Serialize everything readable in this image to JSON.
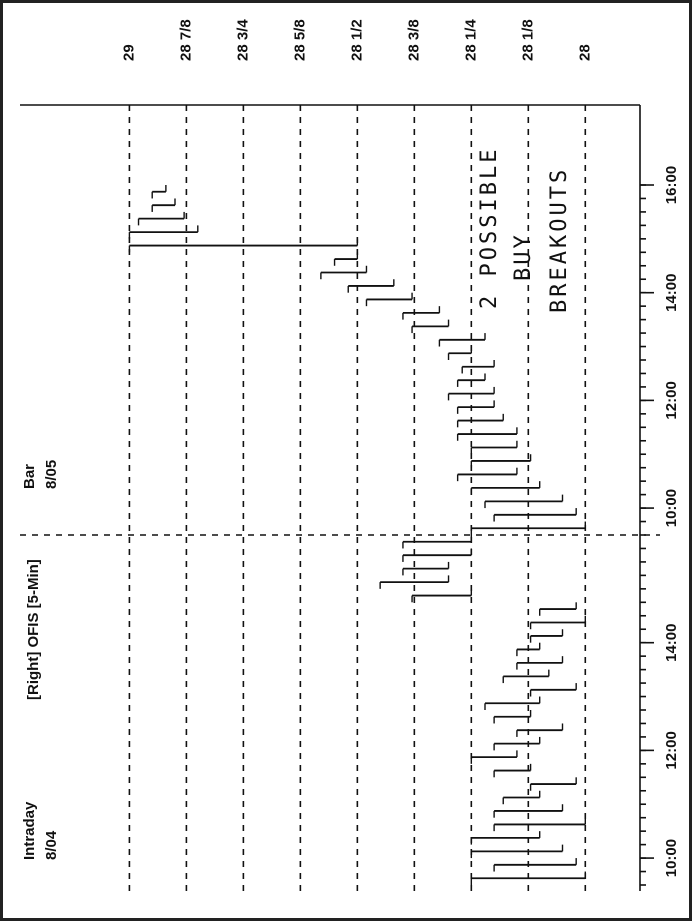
{
  "chart_data": {
    "type": "range-bar",
    "title": "[Right] OFIS [5-Min]",
    "day_labels": [
      [
        "Intraday",
        "8/04"
      ],
      [
        "Bar",
        "8/05"
      ]
    ],
    "annotation": [
      "2 POSSIBLE",
      "BUY",
      "BREAKOUTS"
    ],
    "color": "#111111",
    "xlim": [
      0,
      52
    ],
    "xticks": [
      {
        "value": 2,
        "label": "10:00"
      },
      {
        "value": 10,
        "label": "12:00"
      },
      {
        "value": 18,
        "label": "14:00"
      },
      {
        "value": 28,
        "label": "10:00"
      },
      {
        "value": 36,
        "label": "12:00"
      },
      {
        "value": 44,
        "label": "14:00"
      },
      {
        "value": 52,
        "label": "16:00"
      }
    ],
    "day_break": 26,
    "ylim": [
      27.88,
      29.24
    ],
    "yticks": [
      29,
      {
        "value": 28.875,
        "label": "28 7/8"
      },
      {
        "value": 28.75,
        "label": "28 3/4"
      },
      {
        "value": 28.625,
        "label": "28 5/8"
      },
      {
        "value": 28.5,
        "label": "28 1/2"
      },
      {
        "value": 28.375,
        "label": "28 3/8"
      },
      {
        "value": 28.25,
        "label": "28 1/4"
      },
      {
        "value": 28.125,
        "label": "28 1/8"
      },
      28
    ],
    "grid": true,
    "high": [
      28.25,
      28.2,
      28.25,
      28.25,
      28.2,
      28.2,
      28.18,
      28.12,
      28.2,
      28.25,
      28.2,
      28.15,
      28.2,
      28.22,
      28.12,
      28.18,
      28.15,
      28.15,
      28.12,
      28.12,
      28.1,
      28.38,
      28.45,
      28.4,
      28.4,
      28.4,
      28.25,
      28.2,
      28.22,
      28.25,
      28.28,
      28.25,
      28.25,
      28.28,
      28.28,
      28.28,
      28.3,
      28.28,
      28.27,
      28.3,
      28.32,
      28.38,
      28.4,
      28.48,
      28.52,
      28.58,
      28.55,
      29.0,
      29.0,
      28.98,
      28.95,
      28.95
    ],
    "low": [
      28.0,
      28.02,
      28.05,
      28.1,
      28.0,
      28.05,
      28.1,
      28.02,
      28.12,
      28.15,
      28.1,
      28.05,
      28.12,
      28.1,
      28.02,
      28.08,
      28.05,
      28.1,
      28.05,
      28.0,
      28.02,
      28.25,
      28.3,
      28.3,
      28.25,
      28.25,
      28.0,
      28.02,
      28.05,
      28.1,
      28.15,
      28.12,
      28.15,
      28.15,
      28.18,
      28.2,
      28.2,
      28.22,
      28.2,
      28.25,
      28.22,
      28.3,
      28.32,
      28.38,
      28.42,
      28.48,
      28.5,
      28.5,
      28.85,
      28.88,
      28.9,
      28.92
    ]
  }
}
